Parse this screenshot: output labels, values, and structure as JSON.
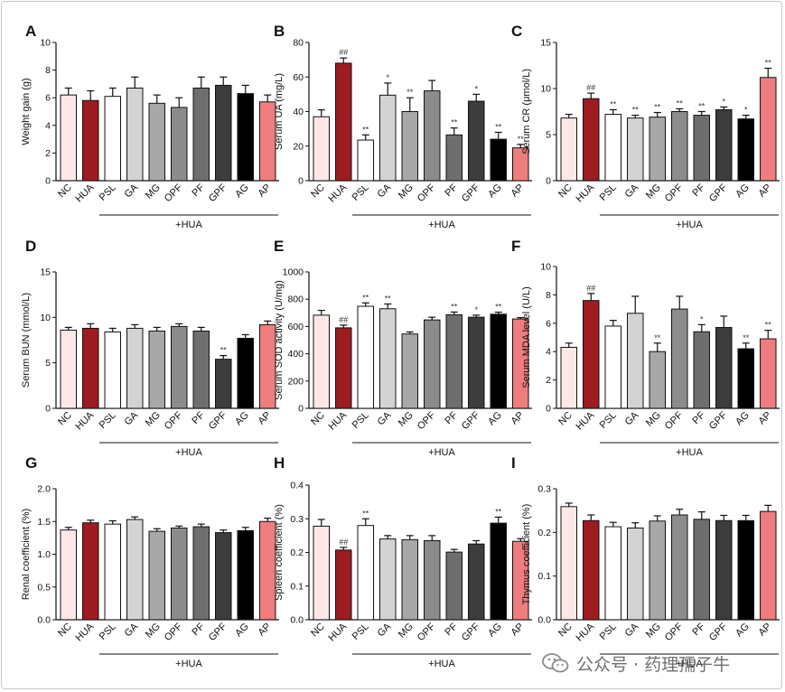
{
  "categories": [
    "NC",
    "HUA",
    "PSL",
    "GA",
    "MG",
    "OPF",
    "PF",
    "GPF",
    "AG",
    "AP"
  ],
  "group_label": "+HUA",
  "colors": [
    "#fde8e8",
    "#9e1b21",
    "#ffffff",
    "#d3d3d3",
    "#a8a8a8",
    "#8c8c8c",
    "#6e6e6e",
    "#3c3c3c",
    "#000000",
    "#ef7d7d"
  ],
  "watermark": "公众号 · 药理孺子牛",
  "chart_data": [
    {
      "panel": "A",
      "type": "bar",
      "ylabel": "Weight gain (g)",
      "ylim": [
        0,
        10
      ],
      "yticks": [
        0,
        2,
        4,
        6,
        8,
        10
      ],
      "values": [
        6.2,
        5.8,
        6.1,
        6.7,
        5.6,
        5.3,
        6.7,
        6.9,
        6.3,
        5.7
      ],
      "errors": [
        0.5,
        0.7,
        0.6,
        0.8,
        0.6,
        0.7,
        0.8,
        0.6,
        0.6,
        0.5
      ],
      "sig": [
        "",
        "",
        "",
        "",
        "",
        "",
        "",
        "",
        "",
        ""
      ]
    },
    {
      "panel": "B",
      "type": "bar",
      "ylabel": "Serum UA (mg/L)",
      "ylim": [
        0,
        80
      ],
      "yticks": [
        0,
        20,
        40,
        60,
        80
      ],
      "values": [
        37,
        68,
        23.5,
        49.5,
        40,
        52,
        26.5,
        46,
        24,
        19
      ],
      "errors": [
        4,
        3,
        3,
        7,
        8,
        6,
        4,
        4,
        4,
        2
      ],
      "sig": [
        "",
        "##",
        "**",
        "*",
        "**",
        "",
        "**",
        "*",
        "**",
        "**"
      ]
    },
    {
      "panel": "C",
      "type": "bar",
      "ylabel": "Serum CR (μmol/L)",
      "ylim": [
        0,
        15
      ],
      "yticks": [
        0,
        5,
        10,
        15
      ],
      "values": [
        6.8,
        8.9,
        7.2,
        6.8,
        6.9,
        7.5,
        7.1,
        7.7,
        6.7,
        11.2
      ],
      "errors": [
        0.4,
        0.6,
        0.5,
        0.3,
        0.5,
        0.3,
        0.4,
        0.3,
        0.4,
        1.0
      ],
      "sig": [
        "",
        "##",
        "**",
        "**",
        "**",
        "**",
        "**",
        "*",
        "*",
        "**"
      ]
    },
    {
      "panel": "D",
      "type": "bar",
      "ylabel": "Serum BUN (mmol/L)",
      "ylim": [
        0,
        15
      ],
      "yticks": [
        0,
        5,
        10,
        15
      ],
      "values": [
        8.6,
        8.8,
        8.4,
        8.8,
        8.5,
        9.0,
        8.5,
        5.4,
        7.7,
        9.2
      ],
      "errors": [
        0.3,
        0.5,
        0.4,
        0.4,
        0.4,
        0.3,
        0.4,
        0.4,
        0.4,
        0.4
      ],
      "sig": [
        "",
        "",
        "",
        "",
        "",
        "",
        "",
        "**",
        "",
        ""
      ]
    },
    {
      "panel": "E",
      "type": "bar",
      "ylabel": "Serum SOD activity (U/mg)",
      "ylim": [
        0,
        1000
      ],
      "yticks": [
        0,
        200,
        400,
        600,
        800,
        1000
      ],
      "values": [
        683,
        590,
        748,
        730,
        545,
        648,
        686,
        668,
        690,
        655
      ],
      "errors": [
        35,
        20,
        25,
        35,
        15,
        20,
        20,
        15,
        15,
        10
      ],
      "sig": [
        "",
        "##",
        "**",
        "**",
        "",
        "",
        "**",
        "*",
        "**",
        ""
      ]
    },
    {
      "panel": "F",
      "type": "bar",
      "ylabel": "Serum MDA level (U/L)",
      "ylim": [
        0,
        10
      ],
      "yticks": [
        0,
        2,
        4,
        6,
        8,
        10
      ],
      "values": [
        4.3,
        7.6,
        5.8,
        6.7,
        4.0,
        7.0,
        5.4,
        5.7,
        4.2,
        4.9
      ],
      "errors": [
        0.3,
        0.5,
        0.4,
        1.2,
        0.6,
        0.9,
        0.5,
        0.8,
        0.4,
        0.6
      ],
      "sig": [
        "",
        "##",
        "",
        "",
        "**",
        "",
        "*",
        "",
        "**",
        "**"
      ]
    },
    {
      "panel": "G",
      "type": "bar",
      "ylabel": "Renal coefficient (%)",
      "ylim": [
        0,
        2.0
      ],
      "yticks": [
        "0.0",
        "0.5",
        "1.0",
        "1.5",
        "2.0"
      ],
      "values": [
        1.37,
        1.48,
        1.46,
        1.53,
        1.35,
        1.4,
        1.42,
        1.33,
        1.36,
        1.5
      ],
      "errors": [
        0.04,
        0.04,
        0.05,
        0.04,
        0.04,
        0.03,
        0.04,
        0.04,
        0.05,
        0.05
      ],
      "sig": [
        "",
        "",
        "",
        "",
        "",
        "",
        "",
        "",
        "",
        ""
      ]
    },
    {
      "panel": "H",
      "type": "bar",
      "ylabel": "Spleen coefficient (%)",
      "ylim": [
        0,
        0.4
      ],
      "yticks": [
        "0.0",
        "0.1",
        "0.2",
        "0.3",
        "0.4"
      ],
      "values": [
        0.278,
        0.207,
        0.28,
        0.24,
        0.238,
        0.235,
        0.201,
        0.225,
        0.287,
        0.233
      ],
      "errors": [
        0.02,
        0.008,
        0.02,
        0.01,
        0.012,
        0.015,
        0.008,
        0.01,
        0.018,
        0.008
      ],
      "sig": [
        "",
        "##",
        "**",
        "",
        "",
        "",
        "",
        "",
        "**",
        ""
      ]
    },
    {
      "panel": "I",
      "type": "bar",
      "ylabel": "Thymus coefficient (%)",
      "ylim": [
        0,
        0.3
      ],
      "yticks": [
        "0.0",
        "0.1",
        "0.2",
        "0.3"
      ],
      "values": [
        0.259,
        0.227,
        0.213,
        0.21,
        0.226,
        0.24,
        0.23,
        0.227,
        0.227,
        0.248
      ],
      "errors": [
        0.008,
        0.013,
        0.01,
        0.012,
        0.012,
        0.013,
        0.017,
        0.012,
        0.012,
        0.014
      ],
      "sig": [
        "",
        "",
        "",
        "",
        "",
        "",
        "",
        "",
        "",
        ""
      ]
    }
  ]
}
